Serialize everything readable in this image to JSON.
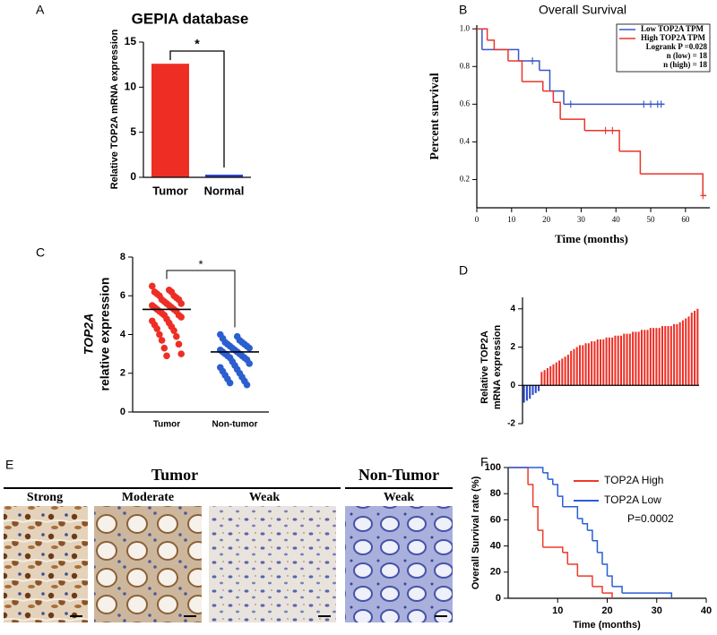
{
  "chart_data": [
    {
      "panel": "A",
      "type": "bar",
      "title": "GEPIA database",
      "ylabel": "Relative TOP2A mRNA expression",
      "categories": [
        "Tumor",
        "Normal"
      ],
      "values": [
        12.6,
        0.3
      ],
      "colors": [
        "#ee2e24",
        "#2b47c9"
      ],
      "ylim": [
        0,
        15
      ],
      "yticks": [
        0,
        5,
        10,
        15
      ],
      "annotation": "*"
    },
    {
      "panel": "B",
      "type": "step",
      "title": "Overall Survival",
      "xlabel": "Time (months)",
      "ylabel": "Percent survival",
      "xlim": [
        0,
        67
      ],
      "xticks": [
        0,
        10,
        20,
        30,
        40,
        50,
        60
      ],
      "ylim": [
        0.05,
        1.02
      ],
      "yticks": [
        0.2,
        0.4,
        0.6,
        0.8,
        {
          "value": 1,
          "label": "1.0"
        }
      ],
      "legend": "upper right",
      "annotations": [
        "Logrank P =0.028",
        "n (low) = 18",
        "n (high) = 18"
      ],
      "series": [
        {
          "name": "Low TOP2A TPM",
          "color": "#3a55c8",
          "x": [
            0,
            1.5,
            12,
            18,
            21,
            25,
            54
          ],
          "values": [
            1,
            0.89,
            0.83,
            0.78,
            0.67,
            0.6,
            0.6
          ],
          "censor_x": [
            16,
            27,
            48,
            50,
            52,
            53
          ],
          "censor_y": [
            0.83,
            0.6,
            0.6,
            0.6,
            0.6,
            0.6
          ]
        },
        {
          "name": "High TOP2A TPM",
          "color": "#e8362a",
          "x": [
            0,
            3,
            5,
            9,
            13,
            19,
            22,
            24,
            31,
            41,
            47,
            65,
            66
          ],
          "values": [
            1,
            0.94,
            0.89,
            0.83,
            0.72,
            0.67,
            0.61,
            0.52,
            0.46,
            0.35,
            0.23,
            0.115,
            0.115
          ],
          "censor_x": [
            37,
            39,
            65
          ],
          "censor_y": [
            0.46,
            0.46,
            0.115
          ]
        }
      ]
    },
    {
      "panel": "C",
      "type": "scatter",
      "ylabel": [
        "TOP2A",
        "relative expression"
      ],
      "categories": [
        "Tumor",
        "Non-tumor"
      ],
      "series": [
        {
          "color": "#ee2e24",
          "mean": 5.3,
          "values": [
            6.5,
            6.3,
            6.2,
            6.2,
            6.1,
            6.0,
            6.0,
            5.9,
            5.8,
            5.8,
            5.7,
            5.6,
            5.6,
            5.5,
            5.5,
            5.4,
            5.4,
            5.3,
            5.3,
            5.2,
            5.2,
            5.1,
            5.0,
            5.0,
            4.9,
            4.8,
            4.7,
            4.6,
            4.5,
            4.4,
            4.3,
            4.2,
            4.0,
            3.9,
            3.7,
            3.5,
            3.3,
            3.0,
            2.9
          ]
        },
        {
          "color": "#2b5fd0",
          "mean": 3.1,
          "values": [
            4.0,
            3.9,
            3.8,
            3.7,
            3.6,
            3.6,
            3.5,
            3.5,
            3.4,
            3.4,
            3.3,
            3.3,
            3.2,
            3.2,
            3.1,
            3.1,
            3.0,
            3.0,
            2.9,
            2.9,
            2.8,
            2.8,
            2.7,
            2.6,
            2.5,
            2.4,
            2.3,
            2.2,
            2.1,
            2.0,
            1.9,
            1.8,
            1.7,
            1.6,
            1.5,
            1.4
          ]
        }
      ],
      "ylim": [
        0,
        8
      ],
      "yticks": [
        0,
        2,
        4,
        6,
        8
      ],
      "annotation": "*"
    },
    {
      "panel": "D",
      "type": "bar",
      "ylabel": [
        "Relative TOP2A",
        "mRNA expression"
      ],
      "values": [
        -0.9,
        -0.8,
        -0.7,
        -0.5,
        -0.4,
        -0.3,
        0.7,
        0.8,
        0.9,
        1.0,
        1.1,
        1.2,
        1.3,
        1.4,
        1.5,
        1.6,
        1.8,
        1.9,
        2.0,
        2.1,
        2.1,
        2.2,
        2.2,
        2.3,
        2.3,
        2.4,
        2.4,
        2.4,
        2.5,
        2.5,
        2.5,
        2.6,
        2.6,
        2.6,
        2.7,
        2.7,
        2.7,
        2.8,
        2.8,
        2.8,
        2.9,
        2.9,
        2.9,
        3.0,
        3.0,
        3.0,
        3.0,
        3.1,
        3.1,
        3.1,
        3.1,
        3.2,
        3.2,
        3.3,
        3.4,
        3.5,
        3.6,
        3.8,
        3.9,
        4.0
      ],
      "color_negative": "#2b47c9",
      "color_positive": "#ee2e24",
      "ylim": [
        -2,
        4.6
      ],
      "yticks": [
        -2,
        0,
        2,
        4
      ]
    },
    {
      "panel": "F",
      "type": "step",
      "xlabel": "Time (months)",
      "ylabel": "Overall Survival rate (%)",
      "xlim": [
        0,
        40
      ],
      "xticks": [
        10,
        20,
        30,
        40
      ],
      "ylim": [
        0,
        100
      ],
      "yticks": [
        0,
        20,
        40,
        60,
        80,
        100
      ],
      "legend": "upper right",
      "annotation": "P=0.0002",
      "series": [
        {
          "name": "TOP2A High",
          "color": "#ee3a2a",
          "x": [
            0,
            4,
            5,
            6,
            7,
            11,
            12,
            14,
            17,
            19,
            21
          ],
          "values": [
            100,
            87,
            70,
            52,
            39,
            35,
            26,
            17,
            9,
            4,
            0
          ]
        },
        {
          "name": "TOP2A Low",
          "color": "#2a5ed6",
          "x": [
            0,
            7,
            8,
            9,
            10,
            11,
            14,
            15,
            16,
            17,
            18,
            19,
            20,
            21,
            23,
            33
          ],
          "values": [
            100,
            96,
            91,
            87,
            78,
            70,
            61,
            57,
            52,
            44,
            35,
            26,
            17,
            9,
            4,
            0
          ]
        }
      ]
    }
  ],
  "figure_e": {
    "panel": "E",
    "groups": [
      "Tumor",
      "Non-Tumor"
    ],
    "images": [
      "Strong",
      "Moderate",
      "Weak",
      "Weak"
    ]
  }
}
